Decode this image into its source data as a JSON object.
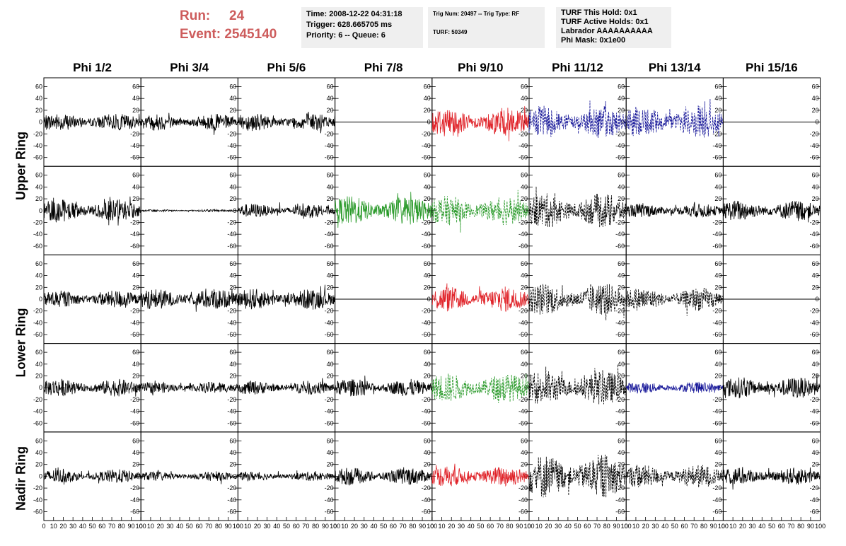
{
  "run": {
    "run_label": "Run:",
    "run_value": "24",
    "event_label": "Event:",
    "event_value": "2545140"
  },
  "info_time": {
    "time": "Time: 2008-12-22 04:31:18",
    "trigger": "Trigger: 628.665705 ms",
    "priority": "Priority: 6 -- Queue: 6"
  },
  "info_trig": {
    "trig": "Trig Num: 20497 -- Trig Type: RF",
    "turf": "TURF: 50349"
  },
  "info_turf": {
    "hold": "TURF This Hold: 0x1",
    "active": "TURF Active Holds: 0x1",
    "labrador": "Labrador AAAAAAAAAA",
    "phimask": "Phi Mask: 0x1e00"
  },
  "columns": [
    "Phi 1/2",
    "Phi 3/4",
    "Phi 5/6",
    "Phi 7/8",
    "Phi 9/10",
    "Phi 11/12",
    "Phi 13/14",
    "Phi 15/16"
  ],
  "rings": [
    "Upper Ring",
    "Lower Ring",
    "Nadir Ring"
  ],
  "y_ticks": [
    "60",
    "40",
    "20",
    "0",
    "-20",
    "-40",
    "-60"
  ],
  "x_ticks": [
    "0",
    "10",
    "20",
    "30",
    "40",
    "50",
    "60",
    "70",
    "80",
    "90",
    "100"
  ],
  "colors": {
    "run_text": "#cd5c5c",
    "red": "#e0242a",
    "blue": "#1a1a9a",
    "green": "#2a9a2a",
    "black": "#000000",
    "info_bg": "#efefef"
  },
  "chart_data": {
    "type": "line",
    "xlim": [
      0,
      100
    ],
    "ylim": [
      -75,
      75
    ],
    "rows": 5,
    "cols": 8,
    "panels": [
      [
        {
          "color": "black",
          "amp": 15,
          "style": "solid"
        },
        {
          "color": "black",
          "amp": 14,
          "style": "solid"
        },
        {
          "color": "black",
          "amp": 15,
          "style": "solid"
        },
        {
          "color": "black",
          "amp": 0,
          "style": "flat"
        },
        {
          "color": "red",
          "amp": 25,
          "style": "solid"
        },
        {
          "color": "blue",
          "amp": 28,
          "style": "dashed"
        },
        {
          "color": "blue",
          "amp": 28,
          "style": "dashed"
        },
        {
          "color": "black",
          "amp": 0,
          "style": "flat"
        }
      ],
      [
        {
          "color": "black",
          "amp": 20,
          "style": "solid"
        },
        {
          "color": "black",
          "amp": 2,
          "style": "solid"
        },
        {
          "color": "black",
          "amp": 12,
          "style": "solid"
        },
        {
          "color": "green",
          "amp": 25,
          "style": "solid"
        },
        {
          "color": "green",
          "amp": 25,
          "style": "dashed"
        },
        {
          "color": "black",
          "amp": 30,
          "style": "dashed"
        },
        {
          "color": "black",
          "amp": 12,
          "style": "solid"
        },
        {
          "color": "black",
          "amp": 18,
          "style": "solid"
        }
      ],
      [
        {
          "color": "black",
          "amp": 15,
          "style": "solid"
        },
        {
          "color": "black",
          "amp": 18,
          "style": "solid"
        },
        {
          "color": "black",
          "amp": 18,
          "style": "solid"
        },
        {
          "color": "black",
          "amp": 0,
          "style": "flat"
        },
        {
          "color": "red",
          "amp": 22,
          "style": "solid"
        },
        {
          "color": "black",
          "amp": 28,
          "style": "dashed"
        },
        {
          "color": "black",
          "amp": 20,
          "style": "dashed"
        },
        {
          "color": "black",
          "amp": 0,
          "style": "flat"
        }
      ],
      [
        {
          "color": "black",
          "amp": 15,
          "style": "solid"
        },
        {
          "color": "black",
          "amp": 10,
          "style": "solid"
        },
        {
          "color": "black",
          "amp": 12,
          "style": "solid"
        },
        {
          "color": "black",
          "amp": 15,
          "style": "solid"
        },
        {
          "color": "green",
          "amp": 25,
          "style": "dashed"
        },
        {
          "color": "black",
          "amp": 30,
          "style": "dashed"
        },
        {
          "color": "blue",
          "amp": 10,
          "style": "solid"
        },
        {
          "color": "black",
          "amp": 18,
          "style": "solid"
        }
      ],
      [
        {
          "color": "black",
          "amp": 12,
          "style": "solid"
        },
        {
          "color": "black",
          "amp": 8,
          "style": "solid"
        },
        {
          "color": "black",
          "amp": 8,
          "style": "solid"
        },
        {
          "color": "black",
          "amp": 15,
          "style": "solid"
        },
        {
          "color": "red",
          "amp": 18,
          "style": "solid"
        },
        {
          "color": "black",
          "amp": 38,
          "style": "dashed"
        },
        {
          "color": "black",
          "amp": 20,
          "style": "dashed"
        },
        {
          "color": "black",
          "amp": 15,
          "style": "solid"
        }
      ]
    ]
  }
}
